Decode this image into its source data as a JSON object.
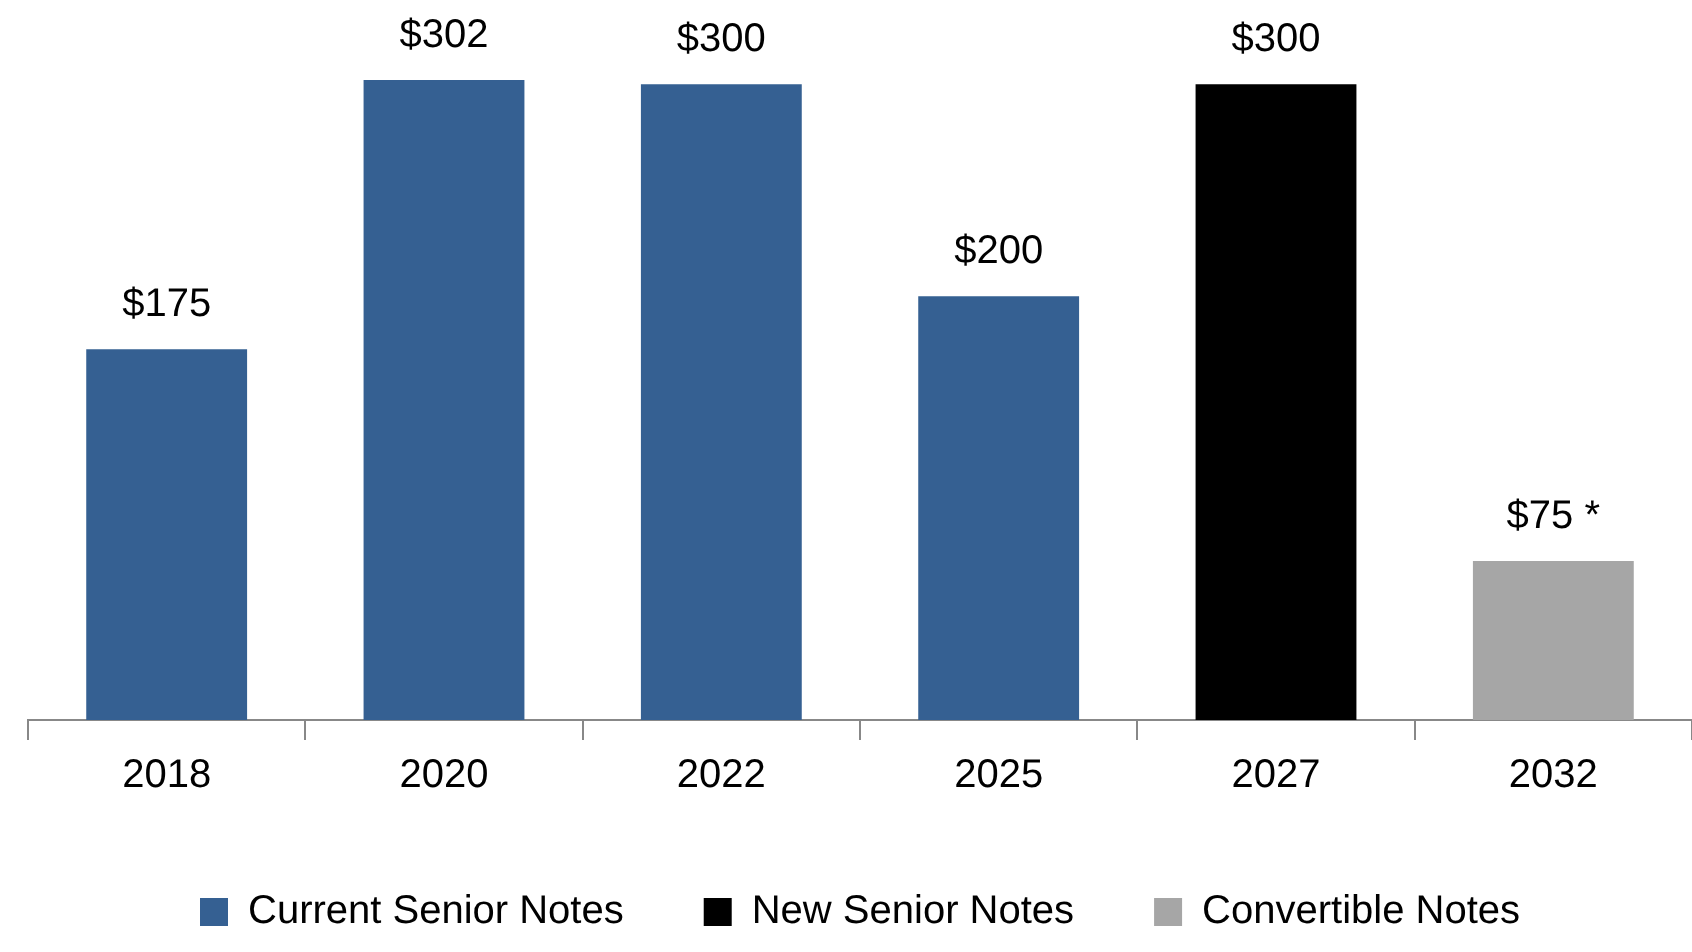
{
  "chart_data": {
    "type": "bar",
    "categories": [
      "2018",
      "2020",
      "2022",
      "2025",
      "2027",
      "2032"
    ],
    "series": [
      {
        "name": "Current Senior Notes",
        "color": "#356092",
        "values": [
          175,
          302,
          300,
          200,
          null,
          null
        ],
        "value_labels": [
          "$175",
          "$302",
          "$300",
          "$200",
          null,
          null
        ]
      },
      {
        "name": "New Senior Notes",
        "color": "#000000",
        "values": [
          null,
          null,
          null,
          null,
          300,
          null
        ],
        "value_labels": [
          null,
          null,
          null,
          null,
          "$300",
          null
        ]
      },
      {
        "name": "Convertible Notes",
        "color": "#a6a6a6",
        "values": [
          null,
          null,
          null,
          null,
          null,
          75
        ],
        "value_labels": [
          null,
          null,
          null,
          null,
          null,
          "$75 *"
        ]
      }
    ],
    "legend": "bottom"
  }
}
